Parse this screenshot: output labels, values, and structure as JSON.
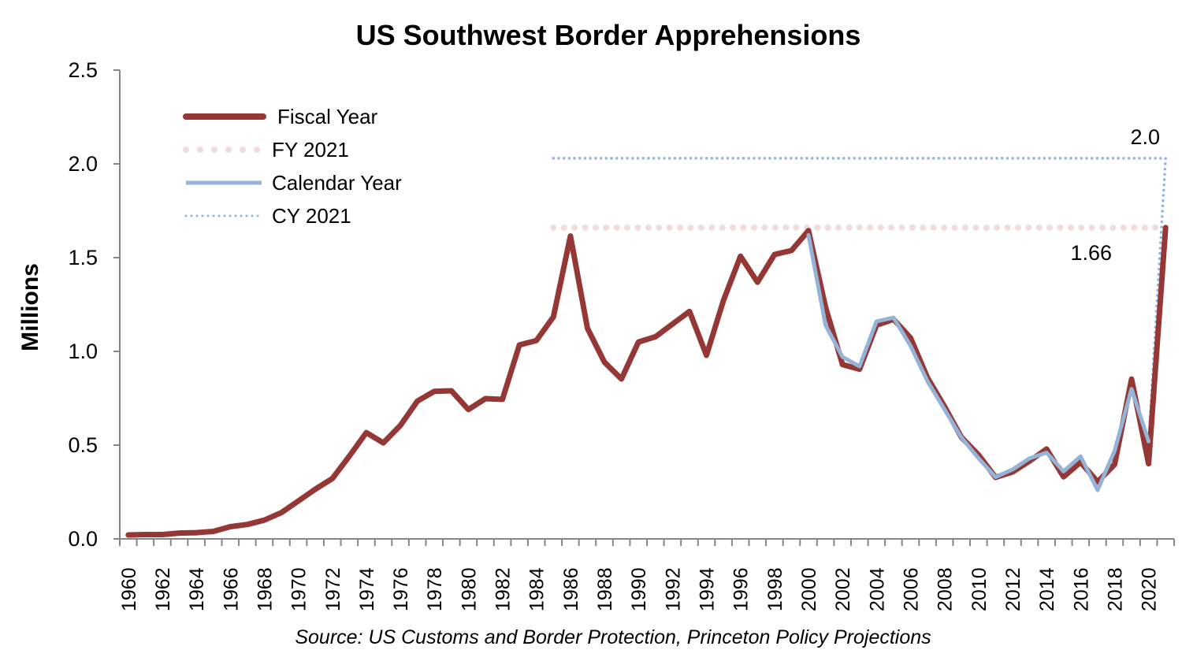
{
  "chart_data": {
    "type": "line",
    "title": "US Southwest Border Apprehensions",
    "ylabel": "Millions",
    "xlabel": "",
    "source": "Source: US Customs and Border Protection, Princeton Policy Projections",
    "ylim": [
      0,
      2.5
    ],
    "yticks": [
      "0.0",
      "0.5",
      "1.0",
      "1.5",
      "2.0",
      "2.5"
    ],
    "xlim": [
      1960,
      2021
    ],
    "xtick_labels": [
      "1960",
      "1962",
      "1964",
      "1966",
      "1968",
      "1970",
      "1972",
      "1974",
      "1976",
      "1978",
      "1980",
      "1982",
      "1984",
      "1986",
      "1988",
      "1990",
      "1992",
      "1994",
      "1996",
      "1998",
      "2000",
      "2002",
      "2004",
      "2006",
      "2008",
      "2010",
      "2012",
      "2014",
      "2016",
      "2018",
      "2020"
    ],
    "grid": false,
    "legend_position": "top-left",
    "colors": {
      "fiscal": "#953735",
      "fy2021": "#f2dcdb",
      "calendar": "#95b3d7",
      "cy2021": "#8db3e2",
      "axis": "#868686"
    },
    "series": [
      {
        "name": "Fiscal Year",
        "style": "solid-thick",
        "x": [
          1960,
          1961,
          1962,
          1963,
          1964,
          1965,
          1966,
          1967,
          1968,
          1969,
          1970,
          1971,
          1972,
          1973,
          1974,
          1975,
          1976,
          1977,
          1978,
          1979,
          1980,
          1981,
          1982,
          1983,
          1984,
          1985,
          1986,
          1987,
          1988,
          1989,
          1990,
          1991,
          1992,
          1993,
          1994,
          1995,
          1996,
          1997,
          1998,
          1999,
          2000,
          2001,
          2002,
          2003,
          2004,
          2005,
          2006,
          2007,
          2008,
          2009,
          2010,
          2011,
          2012,
          2013,
          2014,
          2015,
          2016,
          2017,
          2018,
          2019,
          2020,
          2021
        ],
        "y": [
          0.021,
          0.023,
          0.023,
          0.031,
          0.033,
          0.04,
          0.065,
          0.077,
          0.1,
          0.14,
          0.202,
          0.265,
          0.322,
          0.441,
          0.567,
          0.512,
          0.605,
          0.735,
          0.787,
          0.79,
          0.69,
          0.748,
          0.744,
          1.034,
          1.058,
          1.184,
          1.615,
          1.123,
          0.943,
          0.853,
          1.05,
          1.078,
          1.146,
          1.213,
          0.979,
          1.272,
          1.507,
          1.369,
          1.517,
          1.538,
          1.644,
          1.236,
          0.93,
          0.905,
          1.14,
          1.171,
          1.072,
          0.859,
          0.705,
          0.541,
          0.448,
          0.328,
          0.357,
          0.415,
          0.479,
          0.331,
          0.409,
          0.304,
          0.397,
          0.852,
          0.401,
          1.66
        ]
      },
      {
        "name": "FY 2021",
        "style": "dotted-pink",
        "x": [
          1985,
          2021
        ],
        "y": [
          1.66,
          1.66
        ]
      },
      {
        "name": "Calendar Year",
        "style": "solid-light-blue",
        "x": [
          2000,
          2001,
          2002,
          2003,
          2004,
          2005,
          2006,
          2007,
          2008,
          2009,
          2010,
          2011,
          2012,
          2013,
          2014,
          2015,
          2016,
          2017,
          2018,
          2019,
          2020
        ],
        "y": [
          1.62,
          1.14,
          0.97,
          0.92,
          1.16,
          1.18,
          1.03,
          0.84,
          0.69,
          0.54,
          0.43,
          0.33,
          0.37,
          0.43,
          0.46,
          0.36,
          0.44,
          0.26,
          0.47,
          0.8,
          0.52
        ]
      },
      {
        "name": "CY 2021",
        "style": "dotted-blue",
        "x": [
          1985,
          2021,
          2020
        ],
        "y": [
          2.03,
          2.03,
          0.52
        ]
      }
    ],
    "annotations": [
      {
        "text": "2.0",
        "x": 2021,
        "y": 2.03
      },
      {
        "text": "1.66",
        "x": 2021,
        "y": 1.66
      }
    ]
  }
}
